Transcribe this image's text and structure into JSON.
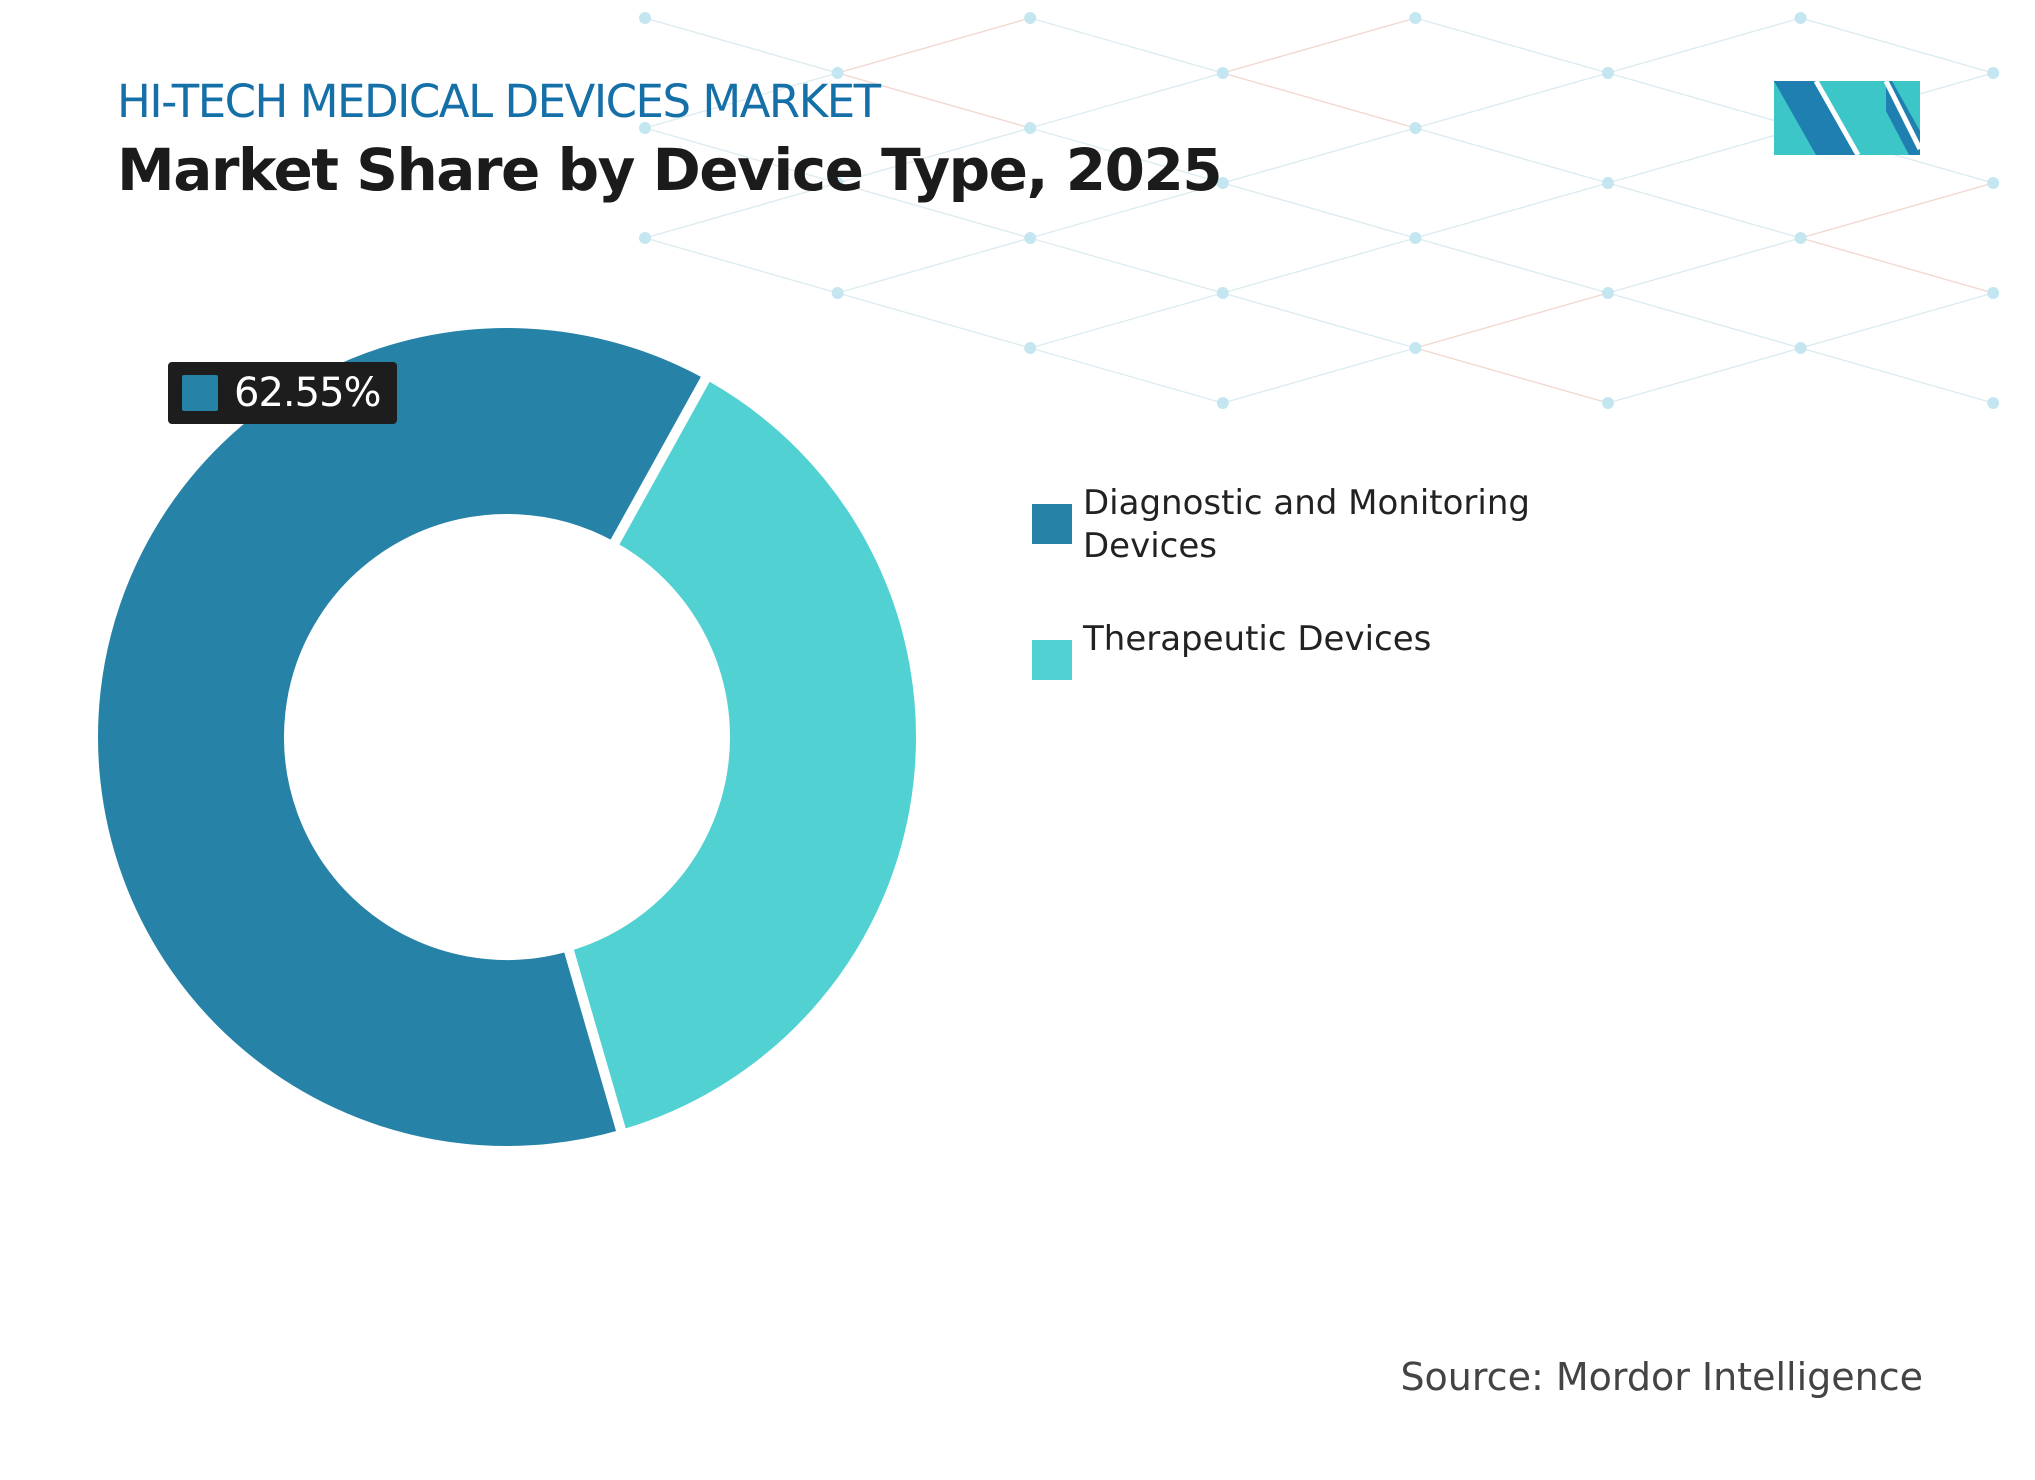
{
  "header": {
    "kicker": "HI-TECH MEDICAL DEVICES MARKET",
    "title": "Market Share by Device Type, 2025"
  },
  "chart_data": {
    "type": "pie",
    "variant": "donut",
    "categories": [
      "Diagnostic and Monitoring Devices",
      "Therapeutic Devices"
    ],
    "values": [
      62.55,
      37.45
    ],
    "colors": [
      "#2782a8",
      "#52d1d3"
    ],
    "data_labels": [
      {
        "category": "Diagnostic and Monitoring Devices",
        "text": "62.55%"
      }
    ],
    "legend": {
      "placement": "right",
      "items": [
        "Diagnostic and Monitoring Devices",
        "Therapeutic Devices"
      ]
    }
  },
  "footer": {
    "source": "Source: Mordor Intelligence"
  },
  "brand": {
    "logo": "Mordor Intelligence logo",
    "colors": [
      "#1f7fb0",
      "#3cc6c8"
    ]
  }
}
